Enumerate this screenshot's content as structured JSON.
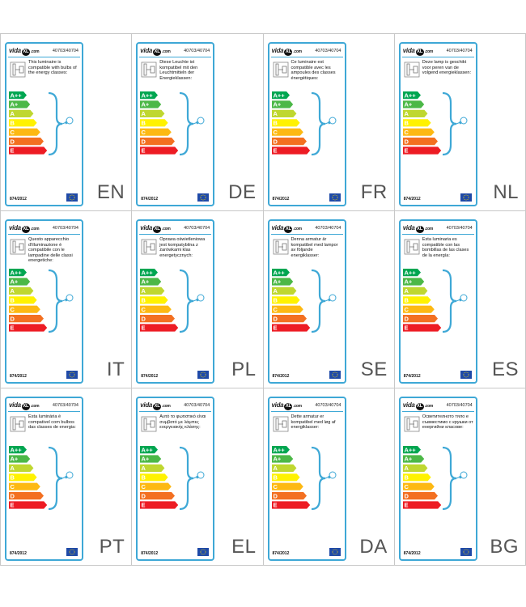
{
  "brand_name": "vida",
  "brand_badge": "XL",
  "brand_domain": ".com",
  "regulation": "874/2012",
  "class_letters": [
    "A++",
    "A+",
    "A",
    "B",
    "C",
    "D",
    "E"
  ],
  "class_colors": [
    "#00a651",
    "#4cb847",
    "#bfd730",
    "#fff200",
    "#fdb913",
    "#f37021",
    "#ed1c24"
  ],
  "icons": [
    "wall-lamp-icon",
    "bulb-icon",
    "eu-flag-icon"
  ],
  "cells": [
    {
      "lang": "EN",
      "sku": "40703/40704",
      "text": "This luminaire is compatible with bulbs of the energy classes:"
    },
    {
      "lang": "DE",
      "sku": "40703/40704",
      "text": "Diese Leuchte ist kompatibel mit den Leuchtmitteln der Energieklassen:"
    },
    {
      "lang": "FR",
      "sku": "40703/40704",
      "text": "Ce luminaire est compatible avec les ampoules des classes énergétiques:"
    },
    {
      "lang": "NL",
      "sku": "40703/40704",
      "text": "Deze lamp is geschikt voor peren van de volgend energieklassen:"
    },
    {
      "lang": "IT",
      "sku": "40703/40704",
      "text": "Questo apparecchio d'illuminazione è compatibile con le lampadine delle classi energetiche:"
    },
    {
      "lang": "PL",
      "sku": "40703/40704",
      "text": "Oprawa oświetleniowa jest kompatybilna z żarówkami klas energetycznych:"
    },
    {
      "lang": "SE",
      "sku": "40703/40704",
      "text": "Denna armatur är kompatibel med lampor av följande energiklasser:"
    },
    {
      "lang": "ES",
      "sku": "40703/40704",
      "text": "Esta luminaria es compatible con las bombillas de las clases de la energía:"
    },
    {
      "lang": "PT",
      "sku": "40703/40704",
      "text": "Esta luminária é compativel com bulbos das classes de energia:"
    },
    {
      "lang": "EL",
      "sku": "40703/40704",
      "text": "Αυτό το φωτιστικό είναι συμβατό με λάμπες ενεργειακής κλάσης:"
    },
    {
      "lang": "DA",
      "sku": "40703/40704",
      "text": "Dette armatur er kompatibel med løg af energiklasser:"
    },
    {
      "lang": "BG",
      "sku": "40703/40704",
      "text": "Осветителното тяло е съвместимо с крушки от енергийни класове:"
    }
  ]
}
